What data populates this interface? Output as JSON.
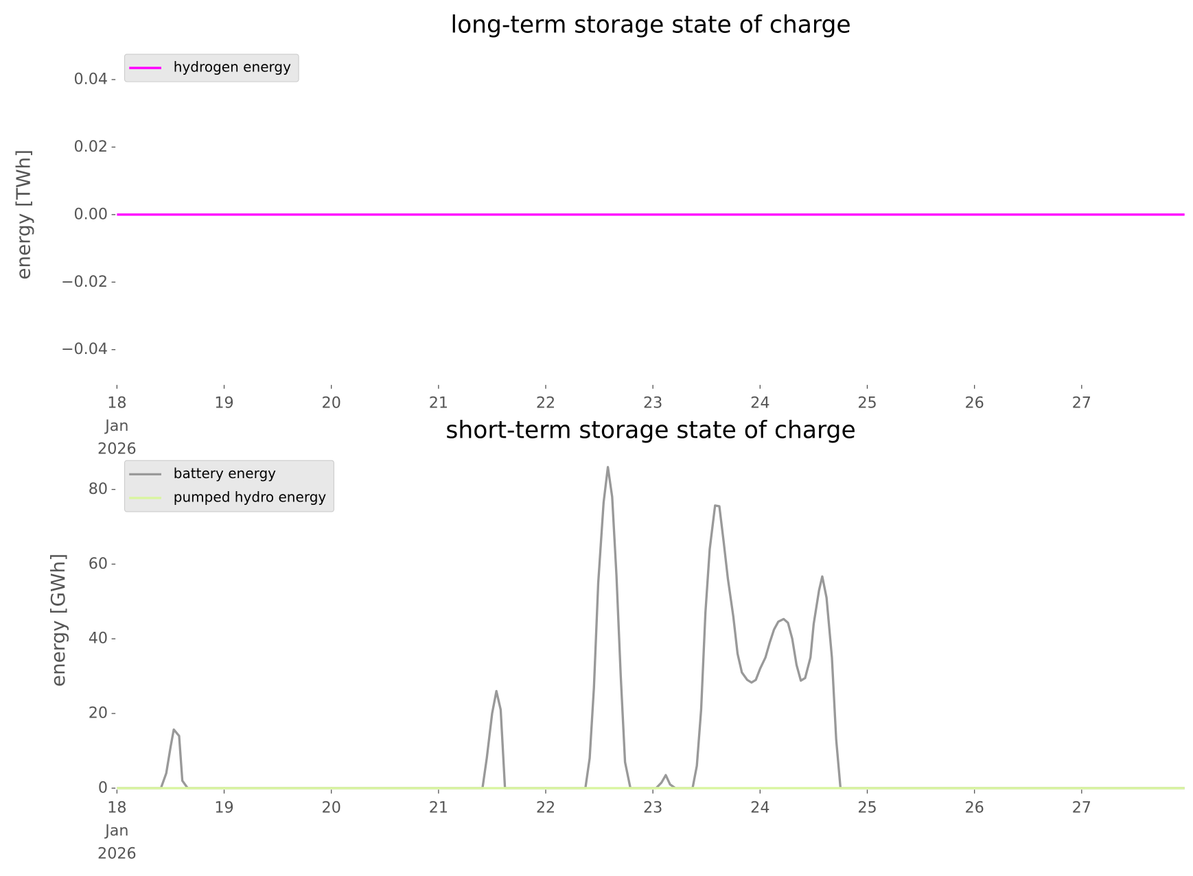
{
  "chart_data": [
    {
      "type": "line",
      "title": "long-term storage state of charge",
      "ylabel": "energy [TWh]",
      "xlim": [
        18,
        27.96
      ],
      "xticks": [
        {
          "value": 18,
          "label": "18\nJan\n2026"
        },
        19,
        20,
        21,
        22,
        23,
        24,
        25,
        26,
        27
      ],
      "ylim": [
        -0.05,
        0.05
      ],
      "yticks": [
        {
          "value": -0.04,
          "label": "−0.04"
        },
        {
          "value": -0.02,
          "label": "−0.02"
        },
        {
          "value": 0,
          "label": "0.00"
        },
        0.02,
        0.04
      ],
      "legend": "upper left",
      "series": [
        {
          "name": "hydrogen energy",
          "color": "#ff00ff",
          "x": [
            18,
            27.96
          ],
          "values": [
            0,
            0
          ]
        }
      ]
    },
    {
      "type": "line",
      "title": "short-term storage state of charge",
      "ylabel": "energy [GWh]",
      "xlim": [
        18,
        27.96
      ],
      "xticks": [
        {
          "value": 18,
          "label": "18\nJan\n2026"
        },
        19,
        20,
        21,
        22,
        23,
        24,
        25,
        26,
        27
      ],
      "ylim": [
        0,
        90
      ],
      "yticks": [
        0,
        20,
        40,
        60,
        80
      ],
      "legend": "upper left",
      "series": [
        {
          "name": "battery energy",
          "color": "#999999",
          "x": [
            18,
            18.41,
            18.46,
            18.5,
            18.53,
            18.58,
            18.61,
            18.66,
            21.41,
            21.45,
            21.5,
            21.54,
            21.58,
            21.62,
            22.37,
            22.41,
            22.45,
            22.49,
            22.54,
            22.58,
            22.62,
            22.66,
            22.7,
            22.74,
            22.79,
            23.03,
            23.08,
            23.12,
            23.16,
            23.21,
            23.37,
            23.41,
            23.45,
            23.49,
            23.53,
            23.58,
            23.62,
            23.66,
            23.7,
            23.75,
            23.79,
            23.83,
            23.88,
            23.92,
            23.96,
            24.0,
            24.05,
            24.09,
            24.13,
            24.17,
            24.22,
            24.26,
            24.3,
            24.34,
            24.38,
            24.42,
            24.47,
            24.5,
            24.55,
            24.58,
            24.62,
            24.67,
            24.71,
            24.75,
            27.96
          ],
          "values": [
            0,
            0,
            4,
            11,
            15.7,
            14,
            2,
            0,
            0,
            8,
            20,
            26,
            21,
            0,
            0,
            8,
            27,
            55,
            76.5,
            86,
            78,
            57,
            30,
            7,
            0,
            0,
            1.5,
            3.5,
            1,
            0,
            0,
            6,
            21,
            47,
            64,
            75.7,
            75.5,
            66,
            56,
            46,
            36,
            31,
            29,
            28.3,
            29,
            32,
            35,
            39,
            42.5,
            44.6,
            45.3,
            44.3,
            40,
            33,
            28.8,
            29.5,
            35,
            44,
            53,
            56.7,
            51,
            35,
            13,
            0,
            0
          ]
        },
        {
          "name": "pumped hydro energy",
          "color": "#d9f5a0",
          "x": [
            18,
            27.96
          ],
          "values": [
            0,
            0
          ]
        }
      ]
    }
  ]
}
